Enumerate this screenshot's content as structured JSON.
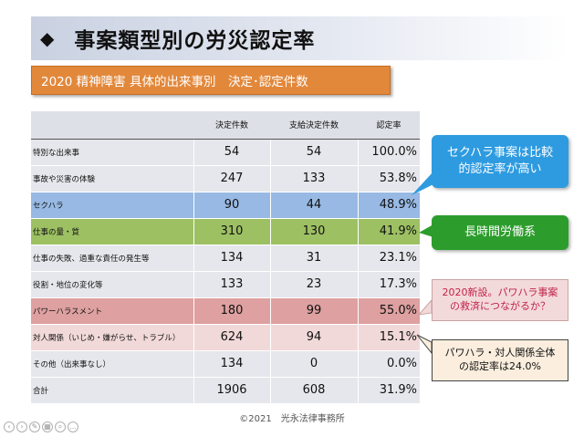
{
  "slide": {
    "title_icon": "diamond-bullet-icon",
    "title": "事案類型別の労災認定率",
    "subtitle": "2020 精神障害 具体的出来事別　決定･認定件数",
    "footer": "©2021　光永法律事務所"
  },
  "table": {
    "headers": [
      "",
      "決定件数",
      "支給決定件数",
      "認定率"
    ],
    "rows": [
      {
        "category": "特別な出来事",
        "decided": "54",
        "approved": "54",
        "rate": "100.0%",
        "highlight": "gray"
      },
      {
        "category": "事故や災害の体験",
        "decided": "247",
        "approved": "133",
        "rate": "53.8%",
        "highlight": "gray"
      },
      {
        "category": "セクハラ",
        "decided": "90",
        "approved": "44",
        "rate": "48.9%",
        "highlight": "blue"
      },
      {
        "category": "仕事の量・質",
        "decided": "310",
        "approved": "130",
        "rate": "41.9%",
        "highlight": "green"
      },
      {
        "category": "仕事の失敗、過重な責任の発生等",
        "decided": "134",
        "approved": "31",
        "rate": "23.1%",
        "highlight": "gray"
      },
      {
        "category": "役割・地位の変化等",
        "decided": "133",
        "approved": "23",
        "rate": "17.3%",
        "highlight": "gray"
      },
      {
        "category": "パワーハラスメント",
        "decided": "180",
        "approved": "99",
        "rate": "55.0%",
        "highlight": "red"
      },
      {
        "category": "対人関係（いじめ・嫌がらせ、トラブル）",
        "decided": "624",
        "approved": "94",
        "rate": "15.1%",
        "highlight": "pink"
      },
      {
        "category": "その他（出来事なし）",
        "decided": "134",
        "approved": "0",
        "rate": "0.0%",
        "highlight": "gray"
      }
    ],
    "total": {
      "category": "合計",
      "decided": "1906",
      "approved": "608",
      "rate": "31.9%"
    }
  },
  "callouts": {
    "sexual_harassment": "セクハラ事案は比較\n的認定率が高い",
    "long_hours": "長時間労働系",
    "power_harassment": "2020新設。パワハラ事案\nの救済につながるか？",
    "combined": "パワハラ・対人関係全体\nの認定率は24.0%"
  },
  "colors": {
    "title_gradient": "#c9d1e1",
    "subtitle_orange": "#e2883b",
    "row_blue": "#97b9e3",
    "row_green": "#9dc063",
    "row_red": "#dea0a0",
    "row_pink": "#f2d9d9",
    "callout_blue": "#2e9be0",
    "callout_green": "#2c9d2c",
    "callout_red_text": "#c0234a"
  },
  "nav_controls": [
    "back-arrow-icon",
    "forward-arrow-icon",
    "pen-icon",
    "slides-icon",
    "zoom-icon",
    "more-icon"
  ]
}
